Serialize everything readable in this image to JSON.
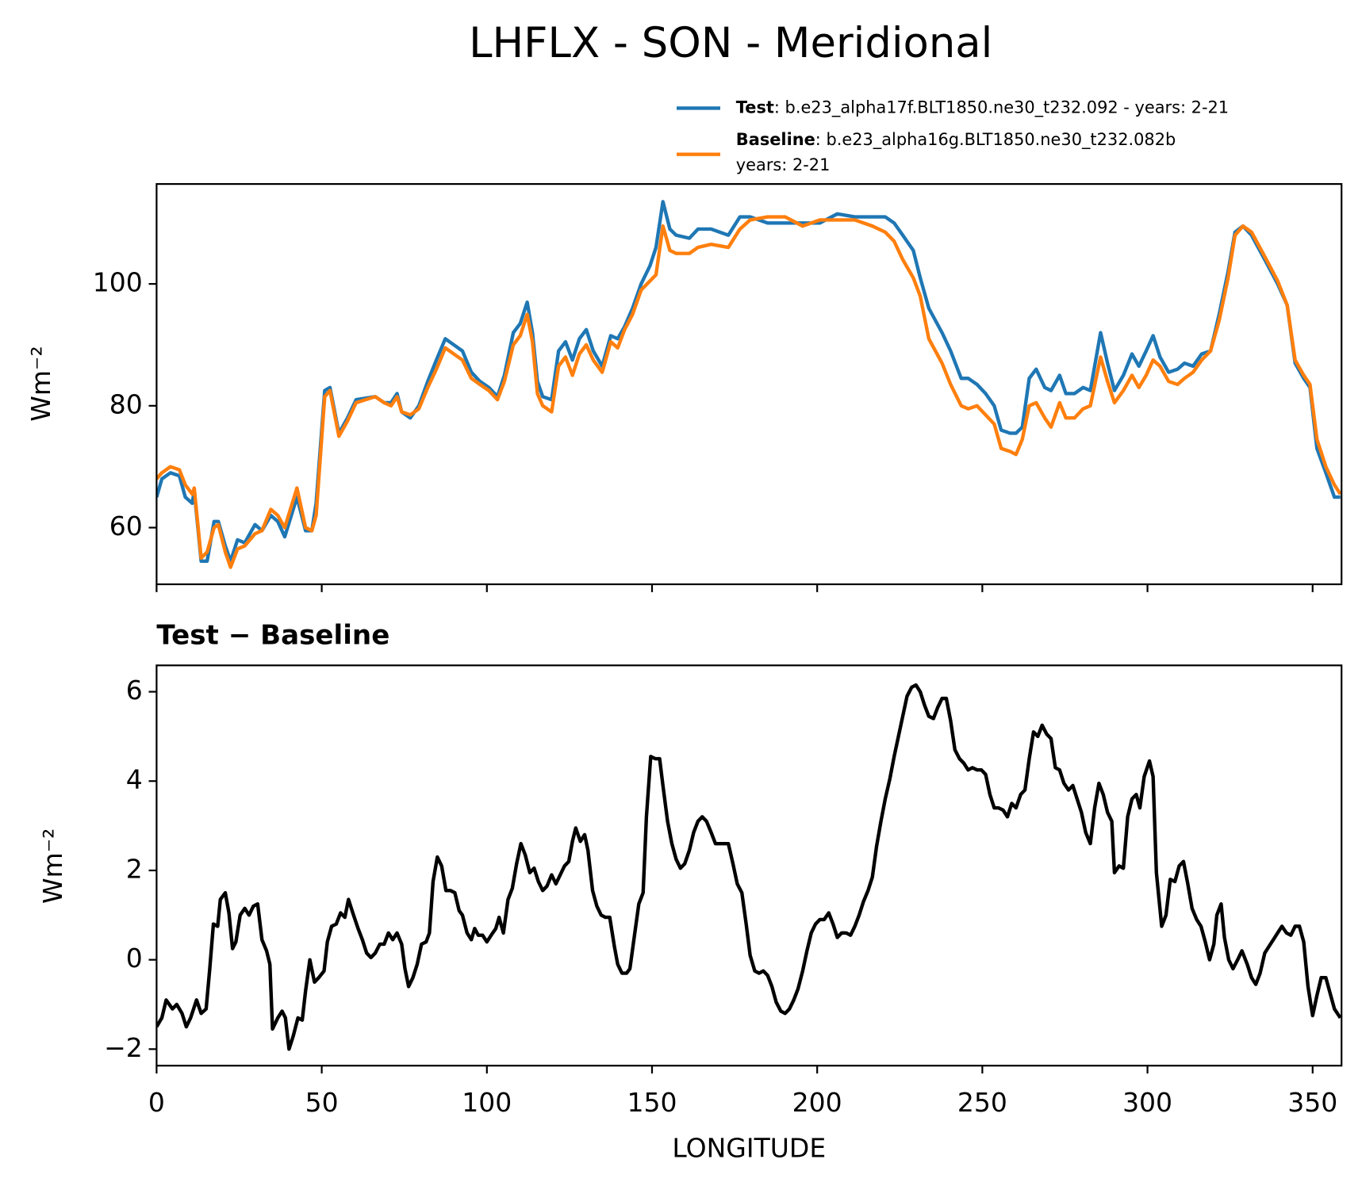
{
  "chart_data": [
    {
      "type": "line",
      "title": "LHFLX - SON - Meridional",
      "ylabel": "Wm⁻²",
      "legend": "outside upper right",
      "sharex": true,
      "xlim": [
        0,
        358.75
      ],
      "ylim": [
        50.7,
        116.4
      ],
      "yticks": [
        60,
        80,
        100
      ],
      "x": [
        0,
        1.6,
        4.2,
        6.9,
        8.7,
        10.8,
        11.4,
        13.5,
        15.3,
        17.4,
        18.7,
        20.8,
        22.4,
        24.5,
        26.7,
        29.8,
        31.9,
        34.6,
        36.7,
        38.8,
        42.5,
        45.1,
        47,
        48.3,
        50.9,
        52.5,
        55.2,
        57.8,
        60.4,
        66.2,
        68.9,
        71,
        72.8,
        74.2,
        76.8,
        79.4,
        82.1,
        84.7,
        87.4,
        90,
        92.6,
        95.3,
        97.9,
        100.6,
        103.2,
        105.3,
        108,
        110.1,
        112.2,
        113.8,
        115.3,
        116.9,
        119.6,
        121.7,
        123.8,
        125.9,
        128,
        130.1,
        132.2,
        134.9,
        137.5,
        139.6,
        141.7,
        144.1,
        146.7,
        149.4,
        151.2,
        153.3,
        155.4,
        157.3,
        161.3,
        163.9,
        167.9,
        173.1,
        176.6,
        179.7,
        185,
        190.3,
        195.6,
        200.8,
        206.1,
        211.4,
        216.7,
        220.6,
        223.3,
        225.9,
        229.1,
        231.2,
        233.8,
        237.8,
        240.4,
        243.6,
        245.7,
        248.4,
        251,
        253.6,
        255.7,
        258.4,
        260.2,
        262.1,
        264.2,
        266.3,
        268.9,
        270.8,
        273.4,
        275.3,
        277.9,
        280.5,
        282.7,
        285.8,
        287.9,
        290,
        292.7,
        295.3,
        297.4,
        299.6,
        301.7,
        303.8,
        306.4,
        309.1,
        311.2,
        313.8,
        316.4,
        319.1,
        321.7,
        324.4,
        326.5,
        328.9,
        331.5,
        335.5,
        339.4,
        342.3,
        344.7,
        347.3,
        349.2,
        351.3,
        354,
        356.6,
        358.4
      ],
      "series": [
        {
          "name": "Test",
          "description": [
            ": b.e23_alpha17f.BLT1850.ne30_t232.092 - years: 2-21"
          ],
          "color": "#1f77b4",
          "values": [
            65,
            68,
            69,
            68.5,
            65,
            64,
            66,
            54.5,
            54.5,
            61,
            61,
            57,
            54.5,
            58,
            57.5,
            60.5,
            59.5,
            62,
            61,
            58.5,
            65,
            59.5,
            59.5,
            64,
            82.5,
            83,
            75.5,
            78,
            81,
            81.5,
            80.5,
            80.5,
            82,
            79,
            78,
            80,
            84,
            87.5,
            91,
            90,
            89,
            85.5,
            84,
            83,
            81.5,
            85,
            92,
            93.5,
            97,
            92,
            84,
            81.5,
            81,
            89,
            90.5,
            87.5,
            91,
            92.5,
            89,
            86.5,
            91.5,
            91,
            93,
            96,
            100,
            103,
            106,
            113.5,
            109,
            108,
            107.5,
            109,
            109,
            108,
            111,
            111,
            110,
            110,
            110,
            110,
            111.5,
            111,
            111,
            111,
            110,
            108,
            105.5,
            101,
            96,
            92,
            89,
            84.5,
            84.5,
            83.5,
            82,
            80,
            76,
            75.5,
            75.5,
            76.5,
            84.5,
            86,
            83,
            82.5,
            85,
            82,
            82,
            83,
            82.5,
            92,
            87,
            82.5,
            85,
            88.5,
            86.5,
            89,
            91.5,
            88,
            85.5,
            86,
            87,
            86.5,
            88.5,
            89,
            95,
            102,
            108.5,
            109.5,
            108,
            104,
            100,
            96.5,
            87,
            84.5,
            83,
            73,
            69,
            65,
            65
          ]
        },
        {
          "name": "Baseline",
          "description": [
            ": b.e23_alpha16g.BLT1850.ne30_t232.082b",
            "years: 2-21"
          ],
          "color": "#ff7f0e",
          "values": [
            68,
            69,
            70,
            69.5,
            67,
            65.5,
            66.5,
            55,
            56,
            60,
            60.5,
            56,
            53.5,
            56.5,
            57,
            59,
            59.5,
            63,
            62,
            60,
            66.5,
            60,
            59.5,
            62,
            81.5,
            82.5,
            75,
            77.5,
            80.5,
            81.5,
            80.5,
            80,
            81.5,
            79,
            78.5,
            79.5,
            83,
            86,
            89.5,
            88.5,
            87.5,
            84.5,
            83.5,
            82.5,
            81,
            84,
            90,
            91.5,
            95,
            90.5,
            82,
            80,
            79,
            86.5,
            88,
            85,
            88.5,
            90,
            87.5,
            85.5,
            90.5,
            89.5,
            92.5,
            95,
            99,
            100.5,
            101.5,
            109.5,
            105.5,
            105,
            105,
            106,
            106.5,
            106,
            109,
            110.5,
            111,
            111,
            109.5,
            110.5,
            110.5,
            110.5,
            109.5,
            108.5,
            107,
            104,
            101,
            98,
            91,
            87,
            83.5,
            80,
            79.5,
            80,
            78.5,
            77,
            73,
            72.5,
            72,
            74.5,
            80,
            80.5,
            78,
            76.5,
            80.5,
            78,
            78,
            79.5,
            80,
            88,
            84,
            80.5,
            82.5,
            85,
            83,
            85,
            87.5,
            86.5,
            84,
            83.5,
            84.5,
            85.5,
            87.5,
            89,
            94,
            101,
            108,
            109.5,
            108.5,
            104.5,
            100.5,
            96.5,
            87.5,
            85,
            83.5,
            74.5,
            70,
            67,
            65.5
          ]
        }
      ]
    },
    {
      "type": "line",
      "title": "Test − Baseline",
      "ylabel": "Wm⁻²",
      "xlabel": "LONGITUDE",
      "color": "#000000",
      "xlim": [
        0,
        358.75
      ],
      "xticks": [
        0,
        50,
        100,
        150,
        200,
        250,
        300,
        350
      ],
      "ylim": [
        -2.37,
        6.59
      ],
      "yticks": [
        {
          "value": -2,
          "label": "−2"
        },
        0,
        2,
        4,
        6
      ],
      "x": [
        0,
        1.6,
        2.9,
        4.8,
        6.1,
        7.7,
        9,
        10.3,
        12.1,
        13.5,
        15,
        16.1,
        17.2,
        18.5,
        19.3,
        20.8,
        21.9,
        23,
        24,
        25.3,
        26.7,
        28,
        29.3,
        30.6,
        31.9,
        33.3,
        34.3,
        35.1,
        36.7,
        38,
        39,
        40.1,
        41.4,
        42.8,
        44.1,
        45.1,
        46.4,
        47.8,
        49.1,
        50.7,
        51.7,
        53,
        54.4,
        55.7,
        57,
        58.1,
        59.4,
        61,
        62.3,
        63.6,
        64.9,
        66.2,
        67.6,
        68.9,
        70.2,
        71.5,
        72.8,
        74.2,
        75.2,
        76.3,
        77.6,
        78.9,
        80.2,
        81.6,
        82.6,
        83.7,
        85,
        86.3,
        87.6,
        89,
        90.3,
        91.6,
        92.6,
        94,
        95.3,
        96.3,
        97.4,
        98.7,
        100,
        101.3,
        102.7,
        103.7,
        105,
        106.4,
        107.7,
        109,
        110.3,
        111.6,
        113,
        114.3,
        115.6,
        116.9,
        118.2,
        119.6,
        120.9,
        122.2,
        123.5,
        124.8,
        125.9,
        126.9,
        128.3,
        129.6,
        130.6,
        132,
        133.3,
        134.6,
        135.9,
        137.2,
        138.6,
        139.6,
        140.9,
        142.3,
        143.3,
        144.6,
        146,
        147.3,
        148.3,
        149.6,
        151,
        152.3,
        153.3,
        154.7,
        156,
        157.3,
        158.6,
        159.9,
        161.3,
        162.6,
        163.9,
        165.2,
        166.5,
        167.9,
        169.2,
        170.5,
        171.8,
        173.1,
        174.5,
        175.8,
        177.2,
        178.5,
        179.7,
        181.1,
        182.4,
        183.7,
        185,
        186.3,
        187.6,
        189,
        190.3,
        191.6,
        192.9,
        194.2,
        195.6,
        196.9,
        198.2,
        199.5,
        200.8,
        202.1,
        203.5,
        204.8,
        206.1,
        207.4,
        208.8,
        210.1,
        211.4,
        212.7,
        214,
        215.4,
        216.7,
        218,
        219.3,
        220.6,
        222,
        223.3,
        224.6,
        225.9,
        227.2,
        228.6,
        229.9,
        231.2,
        232.5,
        233.8,
        235.2,
        236.5,
        237.8,
        239.1,
        240.4,
        241.7,
        243.1,
        244.4,
        245.7,
        247,
        248.4,
        249.7,
        251,
        252.3,
        253.6,
        254.9,
        256.3,
        257.6,
        258.9,
        260.2,
        261.6,
        262.9,
        264.2,
        265.5,
        266.8,
        268.1,
        269.5,
        270.8,
        272.1,
        273.4,
        274.7,
        276.1,
        277.4,
        278.7,
        280,
        281.3,
        282.7,
        284,
        285.3,
        286.6,
        287.9,
        289.2,
        290,
        291.4,
        292.7,
        294,
        295.3,
        296.6,
        297.7,
        299,
        300.6,
        301.7,
        302.7,
        304.3,
        305.6,
        306.9,
        308.3,
        309.6,
        310.9,
        312.2,
        313.5,
        314.9,
        316.2,
        317.5,
        318.8,
        320.1,
        321,
        322.3,
        323.3,
        324.6,
        325.9,
        327.3,
        328.6,
        330.2,
        331.5,
        332.8,
        334.1,
        335.5,
        336.8,
        338.1,
        339.4,
        340.7,
        342.1,
        343.4,
        344.7,
        346,
        347.3,
        348.6,
        350,
        351.3,
        352.6,
        354,
        355.3,
        356.6,
        358.4
      ],
      "values": [
        -1.5,
        -1.3,
        -0.9,
        -1.1,
        -1.0,
        -1.2,
        -1.5,
        -1.3,
        -0.9,
        -1.2,
        -1.1,
        -0.2,
        0.8,
        0.75,
        1.35,
        1.5,
        1.05,
        0.25,
        0.4,
        1.0,
        1.15,
        1.0,
        1.2,
        1.25,
        0.45,
        0.2,
        -0.1,
        -1.55,
        -1.3,
        -1.15,
        -1.3,
        -2.0,
        -1.7,
        -1.3,
        -1.35,
        -0.7,
        0.0,
        -0.5,
        -0.4,
        -0.25,
        0.4,
        0.75,
        0.8,
        1.05,
        0.95,
        1.35,
        1.05,
        0.7,
        0.45,
        0.15,
        0.05,
        0.15,
        0.35,
        0.35,
        0.6,
        0.45,
        0.6,
        0.35,
        -0.2,
        -0.6,
        -0.4,
        -0.1,
        0.35,
        0.4,
        0.6,
        1.75,
        2.3,
        2.1,
        1.55,
        1.55,
        1.5,
        1.1,
        1.0,
        0.6,
        0.45,
        0.7,
        0.55,
        0.55,
        0.4,
        0.55,
        0.7,
        0.95,
        0.6,
        1.35,
        1.6,
        2.15,
        2.6,
        2.35,
        1.95,
        2.05,
        1.75,
        1.55,
        1.65,
        1.9,
        1.7,
        1.9,
        2.1,
        2.2,
        2.65,
        2.95,
        2.65,
        2.8,
        2.45,
        1.55,
        1.2,
        1.0,
        0.95,
        0.95,
        0.3,
        -0.1,
        -0.3,
        -0.3,
        -0.2,
        0.5,
        1.25,
        1.5,
        3.2,
        4.55,
        4.5,
        4.5,
        3.9,
        3.1,
        2.6,
        2.25,
        2.05,
        2.15,
        2.45,
        2.85,
        3.1,
        3.2,
        3.1,
        2.85,
        2.6,
        2.6,
        2.6,
        2.6,
        2.15,
        1.7,
        1.5,
        0.8,
        0.1,
        -0.25,
        -0.3,
        -0.25,
        -0.35,
        -0.6,
        -0.95,
        -1.15,
        -1.2,
        -1.1,
        -0.9,
        -0.65,
        -0.25,
        0.2,
        0.6,
        0.8,
        0.9,
        0.9,
        1.05,
        0.8,
        0.5,
        0.6,
        0.6,
        0.55,
        0.75,
        1.0,
        1.3,
        1.55,
        1.85,
        2.55,
        3.1,
        3.6,
        4.05,
        4.55,
        5.0,
        5.45,
        5.9,
        6.1,
        6.15,
        6.0,
        5.7,
        5.45,
        5.4,
        5.65,
        5.85,
        5.85,
        5.35,
        4.7,
        4.5,
        4.4,
        4.25,
        4.3,
        4.25,
        4.25,
        4.15,
        3.7,
        3.4,
        3.4,
        3.35,
        3.2,
        3.5,
        3.4,
        3.7,
        3.8,
        4.5,
        5.1,
        5.0,
        5.25,
        5.05,
        4.95,
        4.3,
        4.25,
        3.95,
        3.8,
        3.9,
        3.6,
        3.3,
        2.85,
        2.6,
        3.4,
        3.95,
        3.7,
        3.3,
        3.1,
        1.95,
        2.1,
        2.05,
        3.2,
        3.6,
        3.7,
        3.4,
        4.1,
        4.45,
        4.1,
        1.95,
        0.75,
        1.0,
        1.8,
        1.75,
        2.1,
        2.2,
        1.7,
        1.15,
        0.9,
        0.75,
        0.4,
        0.0,
        0.35,
        1.0,
        1.25,
        0.5,
        0.0,
        -0.2,
        0.0,
        0.2,
        -0.1,
        -0.4,
        -0.55,
        -0.3,
        0.15,
        0.3,
        0.45,
        0.6,
        0.75,
        0.6,
        0.55,
        0.75,
        0.75,
        0.4,
        -0.6,
        -1.25,
        -0.8,
        -0.4,
        -0.4,
        -0.75,
        -1.1,
        -1.3
      ]
    }
  ]
}
